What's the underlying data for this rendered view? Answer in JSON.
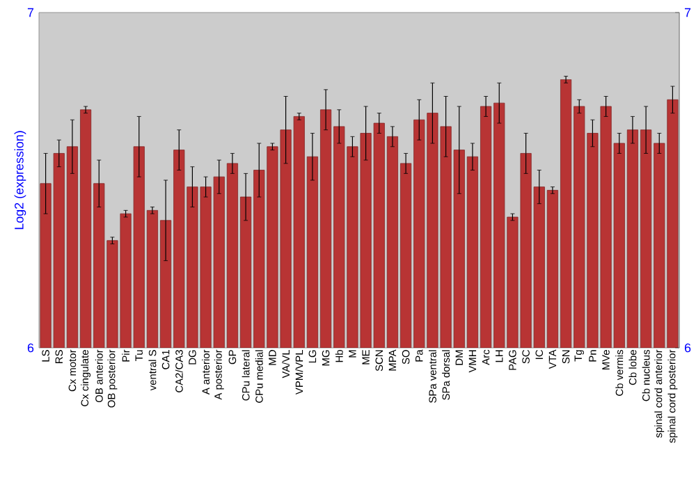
{
  "chart_data": {
    "type": "bar",
    "ylabel": "Log2 (expression)",
    "categories": [
      "LS",
      "RS",
      "Cx motor",
      "Cx cingulate",
      "OB anterior",
      "OB posterior",
      "Pir",
      "Tu",
      "ventral S",
      "CA1",
      "CA2/CA3",
      "DG",
      "A anterior",
      "A posterior",
      "GP",
      "CPu lateral",
      "CPu medial",
      "MD",
      "VA/VL",
      "VPM/VPL",
      "LG",
      "MG",
      "Hb",
      "M",
      "ME",
      "SCN",
      "MPA",
      "SO",
      "Pa",
      "SPa ventral",
      "SPa dorsal",
      "DM",
      "VMH",
      "Arc",
      "LH",
      "PAG",
      "SC",
      "IC",
      "VTA",
      "SN",
      "Tg",
      "Pn",
      "MVe",
      "Cb vermis",
      "Cb lobe",
      "Cb nucleus",
      "spinal cord anterior",
      "spinal cord posterior"
    ],
    "values": [
      6.49,
      6.58,
      6.6,
      6.71,
      6.49,
      6.32,
      6.4,
      6.6,
      6.41,
      6.38,
      6.59,
      6.48,
      6.48,
      6.51,
      6.55,
      6.45,
      6.53,
      6.6,
      6.65,
      6.69,
      6.57,
      6.71,
      6.66,
      6.6,
      6.64,
      6.67,
      6.63,
      6.55,
      6.68,
      6.7,
      6.66,
      6.59,
      6.57,
      6.72,
      6.73,
      6.39,
      6.58,
      6.48,
      6.47,
      6.8,
      6.72,
      6.64,
      6.72,
      6.61,
      6.65,
      6.65,
      6.61,
      6.74
    ],
    "errors": [
      0.09,
      0.04,
      0.08,
      0.01,
      0.07,
      0.01,
      0.01,
      0.09,
      0.01,
      0.12,
      0.06,
      0.06,
      0.03,
      0.05,
      0.03,
      0.07,
      0.08,
      0.01,
      0.1,
      0.01,
      0.07,
      0.06,
      0.05,
      0.03,
      0.08,
      0.03,
      0.03,
      0.03,
      0.06,
      0.09,
      0.09,
      0.13,
      0.04,
      0.03,
      0.06,
      0.01,
      0.06,
      0.05,
      0.01,
      0.01,
      0.02,
      0.04,
      0.03,
      0.03,
      0.04,
      0.07,
      0.03,
      0.04
    ],
    "color": "#b83434",
    "ylim": [
      6,
      7
    ],
    "yticks": [
      6,
      7
    ],
    "y2lim": [
      6,
      7
    ],
    "y2ticks": [
      6,
      7
    ],
    "grid": false
  }
}
